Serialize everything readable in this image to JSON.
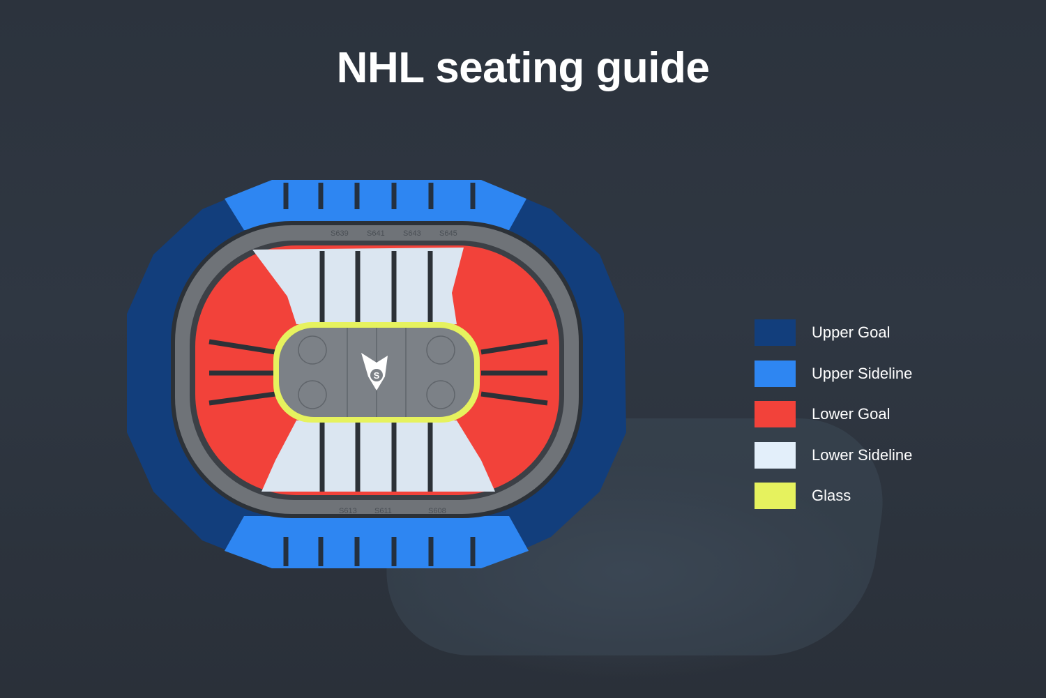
{
  "title": "NHL seating guide",
  "legend": [
    {
      "label": "Upper Goal",
      "color": "#123e7c"
    },
    {
      "label": "Upper Sideline",
      "color": "#2e86f2"
    },
    {
      "label": "Lower Goal",
      "color": "#f2423a"
    },
    {
      "label": "Lower Sideline",
      "color": "#e3effa"
    },
    {
      "label": "Glass",
      "color": "#e6f25e"
    }
  ],
  "section_labels": {
    "top": [
      "S639",
      "S641",
      "S643",
      "S645"
    ],
    "bottom": [
      "S613",
      "S611",
      "S608"
    ]
  },
  "center_logo": "team-logo-icon"
}
